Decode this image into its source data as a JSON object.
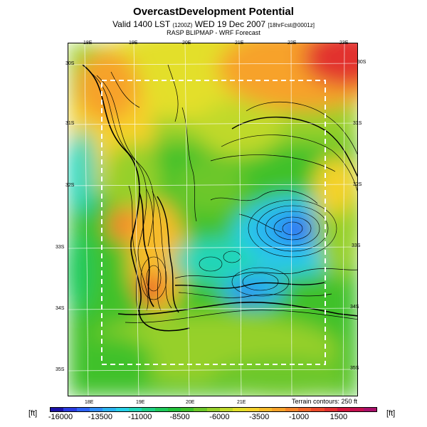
{
  "header": {
    "title": "OvercastDevelopment Potential",
    "valid_prefix": "Valid 1400 LST",
    "valid_code": "(1200Z)",
    "valid_date": "WED 19 Dec 2007",
    "forecast_code": "[18hrFcst@0001z]",
    "source": "RASP BLIPMAP - WRF Forecast"
  },
  "map": {
    "top_lon_labels": [
      "18E",
      "19E",
      "20E",
      "21E",
      "22E",
      "23E"
    ],
    "bottom_lon_labels": [
      "18E",
      "19E",
      "20E",
      "21E"
    ],
    "left_lat_labels": [
      "30S",
      "31S",
      "32S",
      "33S",
      "34S",
      "35S"
    ],
    "right_lat_labels": [
      "30S",
      "31S",
      "32S",
      "33S",
      "34S",
      "35S"
    ],
    "terrain_note": "Terrain contours: 250 ft"
  },
  "colorbar": {
    "unit_left": "[ft]",
    "unit_right": "[ft]",
    "tick_labels": [
      "-16000",
      "-13500",
      "-11000",
      "-8500",
      "-6000",
      "-3500",
      "-1000",
      "1500"
    ],
    "colors": [
      "#1a12a8",
      "#2a3be0",
      "#2e63f5",
      "#2f8df5",
      "#2bb3f0",
      "#27d0e8",
      "#22d6b8",
      "#1fcf85",
      "#1ec95a",
      "#22c23a",
      "#3fc12b",
      "#6cc72a",
      "#96d02a",
      "#bfd92b",
      "#e3df2c",
      "#f5d22c",
      "#f7bb2b",
      "#f7a22a",
      "#f5852a",
      "#f2672a",
      "#ec4a2b",
      "#e2302f",
      "#d4163c",
      "#c4104f",
      "#a9106a"
    ]
  }
}
